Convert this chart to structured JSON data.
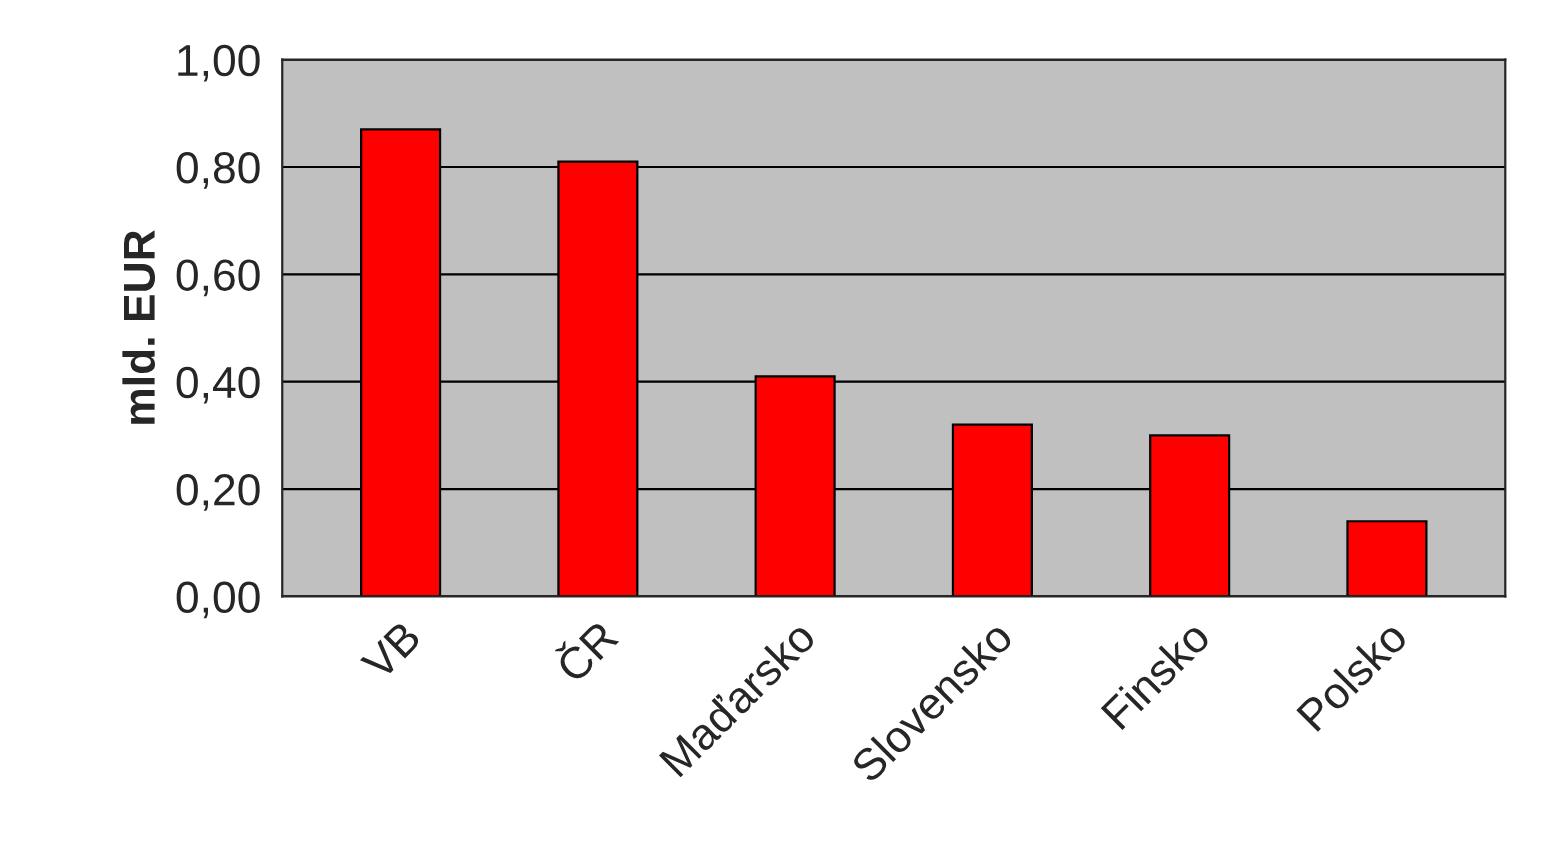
{
  "chart_data": {
    "type": "bar",
    "ylabel": "mld. EUR",
    "categories": [
      "VB",
      "ČR",
      "Maďarsko",
      "Slovensko",
      "Finsko",
      "Polsko"
    ],
    "values": [
      0.87,
      0.81,
      0.41,
      0.32,
      0.3,
      0.14
    ],
    "color": "#ff0000",
    "ylim": [
      0,
      1
    ],
    "yticks": [
      {
        "value": 0,
        "label": "0,00"
      },
      {
        "value": 0.2,
        "label": "0,20"
      },
      {
        "value": 0.4,
        "label": "0,40"
      },
      {
        "value": 0.6,
        "label": "0,60"
      },
      {
        "value": 0.8,
        "label": "0,80"
      },
      {
        "value": 1,
        "label": "1,00"
      }
    ],
    "grid": "y"
  }
}
